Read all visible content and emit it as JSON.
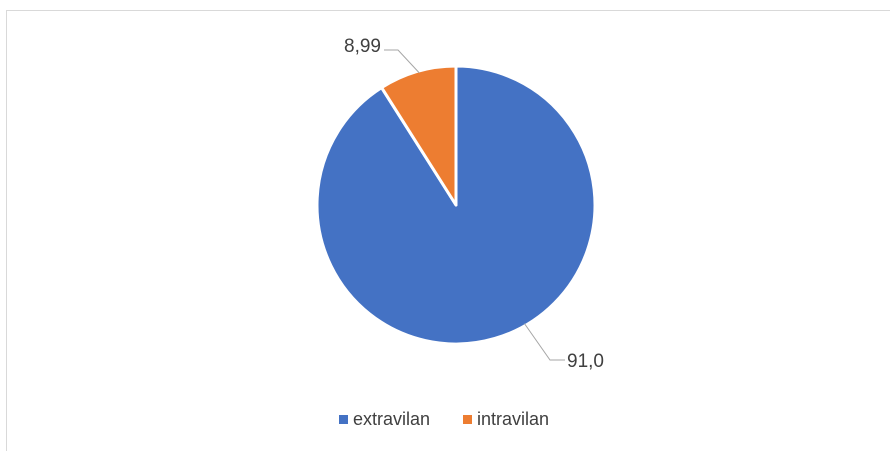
{
  "chart_data": {
    "type": "pie",
    "title": "",
    "categories": [
      "extravilan",
      "intravilan"
    ],
    "values": [
      91.0,
      8.99
    ],
    "data_labels": [
      "91,0",
      "8,99"
    ],
    "colors": [
      "#4472c4",
      "#ed7d31"
    ],
    "start_angle_deg": 0,
    "direction": "clockwise",
    "legend_position": "bottom"
  }
}
